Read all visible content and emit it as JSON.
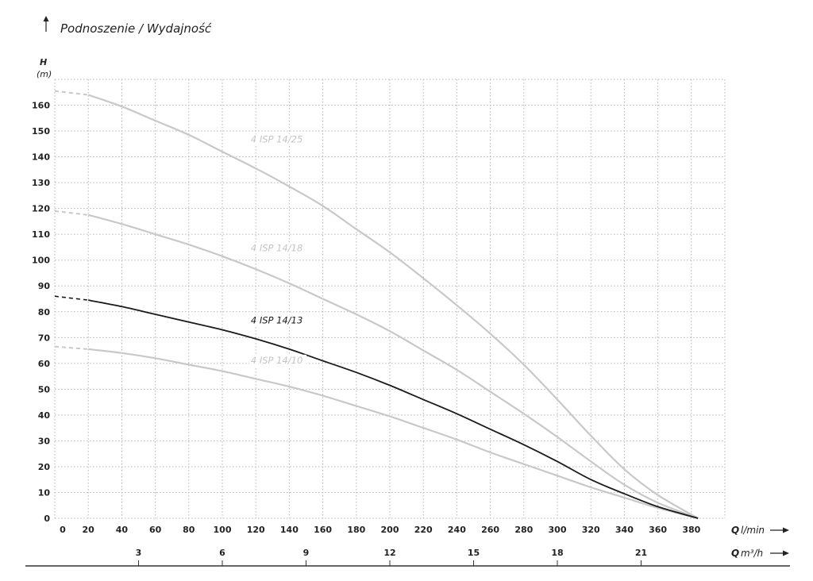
{
  "chart_data": {
    "type": "line",
    "title": "Podnoszenie / Wydajność",
    "ylabel": "H",
    "ylabel_unit": "(m)",
    "xlabel": "Q",
    "xlabel_unit": "l/min",
    "x2label": "Q",
    "x2label_unit": "m³/h",
    "xlim": [
      0,
      400
    ],
    "ylim": [
      0,
      170
    ],
    "grid": true,
    "x_ticks": [
      0,
      20,
      40,
      60,
      80,
      100,
      120,
      140,
      160,
      180,
      200,
      220,
      240,
      260,
      280,
      300,
      320,
      340,
      360,
      380
    ],
    "y_ticks": [
      0,
      10,
      20,
      30,
      40,
      50,
      60,
      70,
      80,
      90,
      100,
      110,
      120,
      130,
      140,
      150,
      160
    ],
    "x2_ticks": [
      3,
      6,
      9,
      12,
      15,
      18,
      21
    ],
    "series": [
      {
        "name": "4 ISP 14/25",
        "color": "#c8c8c8",
        "label_x": 117,
        "label_y": 145.5,
        "dashed_until": 20,
        "x": [
          0,
          20,
          40,
          60,
          80,
          100,
          120,
          140,
          160,
          180,
          200,
          220,
          240,
          260,
          280,
          300,
          320,
          340,
          360,
          384
        ],
        "y": [
          165.5,
          164,
          159.5,
          154,
          148.5,
          142,
          135.5,
          128.5,
          121,
          112,
          103,
          93,
          82.5,
          71.5,
          59.5,
          46,
          32,
          19,
          9,
          0
        ]
      },
      {
        "name": "4 ISP 14/18",
        "color": "#c8c8c8",
        "label_x": 117,
        "label_y": 103.5,
        "dashed_until": 20,
        "x": [
          0,
          20,
          40,
          60,
          80,
          100,
          120,
          140,
          160,
          180,
          200,
          220,
          240,
          260,
          280,
          300,
          320,
          340,
          360,
          384
        ],
        "y": [
          119,
          117.5,
          114,
          110,
          106,
          101.5,
          96.5,
          91,
          85,
          79,
          72.5,
          65,
          57.5,
          49,
          40.5,
          31.5,
          22,
          13,
          6,
          0
        ]
      },
      {
        "name": "4 ISP 14/13",
        "color": "#1a1a1a",
        "label_x": 117,
        "label_y": 75.5,
        "dashed_until": 20,
        "x": [
          0,
          20,
          40,
          60,
          80,
          100,
          120,
          140,
          160,
          180,
          200,
          220,
          240,
          260,
          280,
          300,
          320,
          340,
          360,
          384
        ],
        "y": [
          86,
          84.5,
          82,
          79,
          76,
          73,
          69.5,
          65.5,
          61,
          56.5,
          51.5,
          46,
          40.5,
          34.5,
          28.5,
          22,
          15,
          9.5,
          4.5,
          0
        ]
      },
      {
        "name": "4 ISP 14/10",
        "color": "#c8c8c8",
        "label_x": 117,
        "label_y": 60,
        "dashed_until": 20,
        "x": [
          0,
          20,
          40,
          60,
          80,
          100,
          120,
          140,
          160,
          180,
          200,
          220,
          240,
          260,
          280,
          300,
          320,
          340,
          360,
          384
        ],
        "y": [
          66.5,
          65.5,
          64,
          62,
          59.5,
          57,
          54,
          51,
          47.5,
          43.5,
          39.5,
          35,
          30.5,
          25.5,
          21,
          16.5,
          12,
          8,
          4,
          0
        ]
      }
    ]
  }
}
